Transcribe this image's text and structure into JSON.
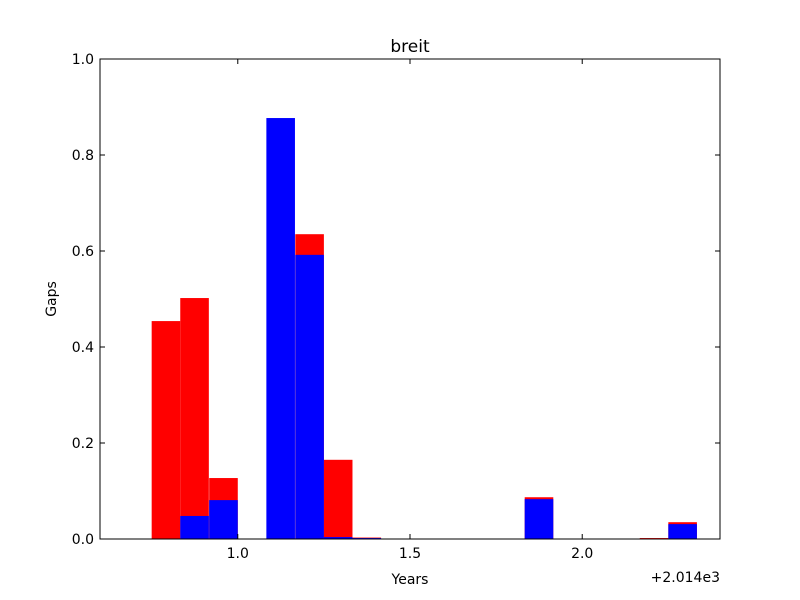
{
  "chart_data": {
    "type": "bar",
    "title": "breit",
    "x_label": "Years",
    "y_label": "Gaps",
    "x_offset_text": "+2.014e3",
    "x": [
      0.75,
      0.833,
      0.917,
      1.0,
      1.083,
      1.167,
      1.25,
      1.333,
      1.417,
      1.5,
      1.583,
      1.667,
      1.75,
      1.833,
      1.917,
      2.0,
      2.083,
      2.167,
      2.25
    ],
    "series": [
      {
        "color": "#ff0000",
        "values": [
          0.454,
          0.502,
          0.127,
          0,
          0,
          0.635,
          0.165,
          0.003,
          0,
          0,
          0,
          0,
          0,
          0.087,
          0,
          0,
          0,
          0.002,
          0.035
        ]
      },
      {
        "color": "#0000ff",
        "values": [
          0,
          0.048,
          0.081,
          0,
          0.877,
          0.592,
          0.004,
          0.002,
          0,
          0,
          0,
          0,
          0,
          0.083,
          0,
          0,
          0,
          0,
          0.031
        ]
      }
    ],
    "xlim": [
      0.6,
      2.4
    ],
    "ylim": [
      0,
      1
    ],
    "xticks": [
      {
        "value": 1,
        "label": "1.0"
      },
      {
        "value": 1.5,
        "label": "1.5"
      },
      {
        "value": 2,
        "label": "2.0"
      }
    ],
    "yticks": [
      {
        "value": 0,
        "label": "0.0"
      },
      0.2,
      0.4,
      0.6,
      0.8,
      {
        "value": 1,
        "label": "1.0"
      }
    ]
  }
}
